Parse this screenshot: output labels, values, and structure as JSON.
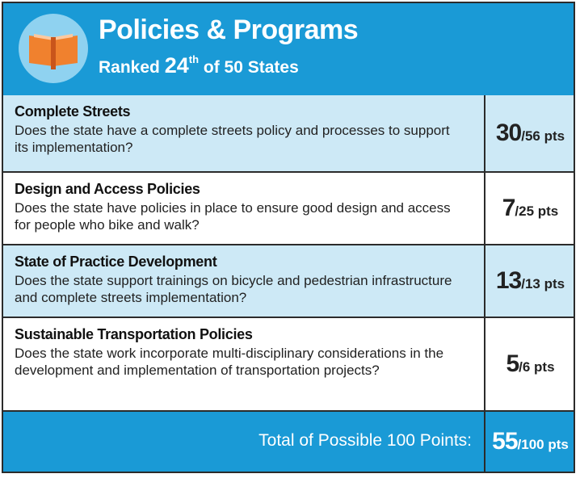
{
  "header": {
    "title": "Policies & Programs",
    "rank_prefix": "Ranked",
    "rank": "24",
    "rank_suffix": "th",
    "rank_rest": "of 50 States"
  },
  "rows": [
    {
      "title": "Complete Streets",
      "description": "Does the state have a complete streets policy and processes to support its implementation?",
      "score": "30",
      "max": "/56 pts"
    },
    {
      "title": "Design and Access Policies",
      "description": "Does the state have policies in place to ensure good design and access for people who bike and walk?",
      "score": "7",
      "max": "/25 pts"
    },
    {
      "title": "State of Practice Development",
      "description": "Does the state support trainings on bicycle and pedestrian infrastructure and complete streets implementation?",
      "score": "13",
      "max": "/13 pts"
    },
    {
      "title": "Sustainable Transportation Policies",
      "description": "Does the state work incorporate multi-disciplinary considerations in the development and implementation of transportation projects?",
      "score": "5",
      "max": "/6 pts"
    }
  ],
  "total": {
    "label": "Total of Possible 100 Points:",
    "score": "55",
    "max": "/100 pts"
  }
}
